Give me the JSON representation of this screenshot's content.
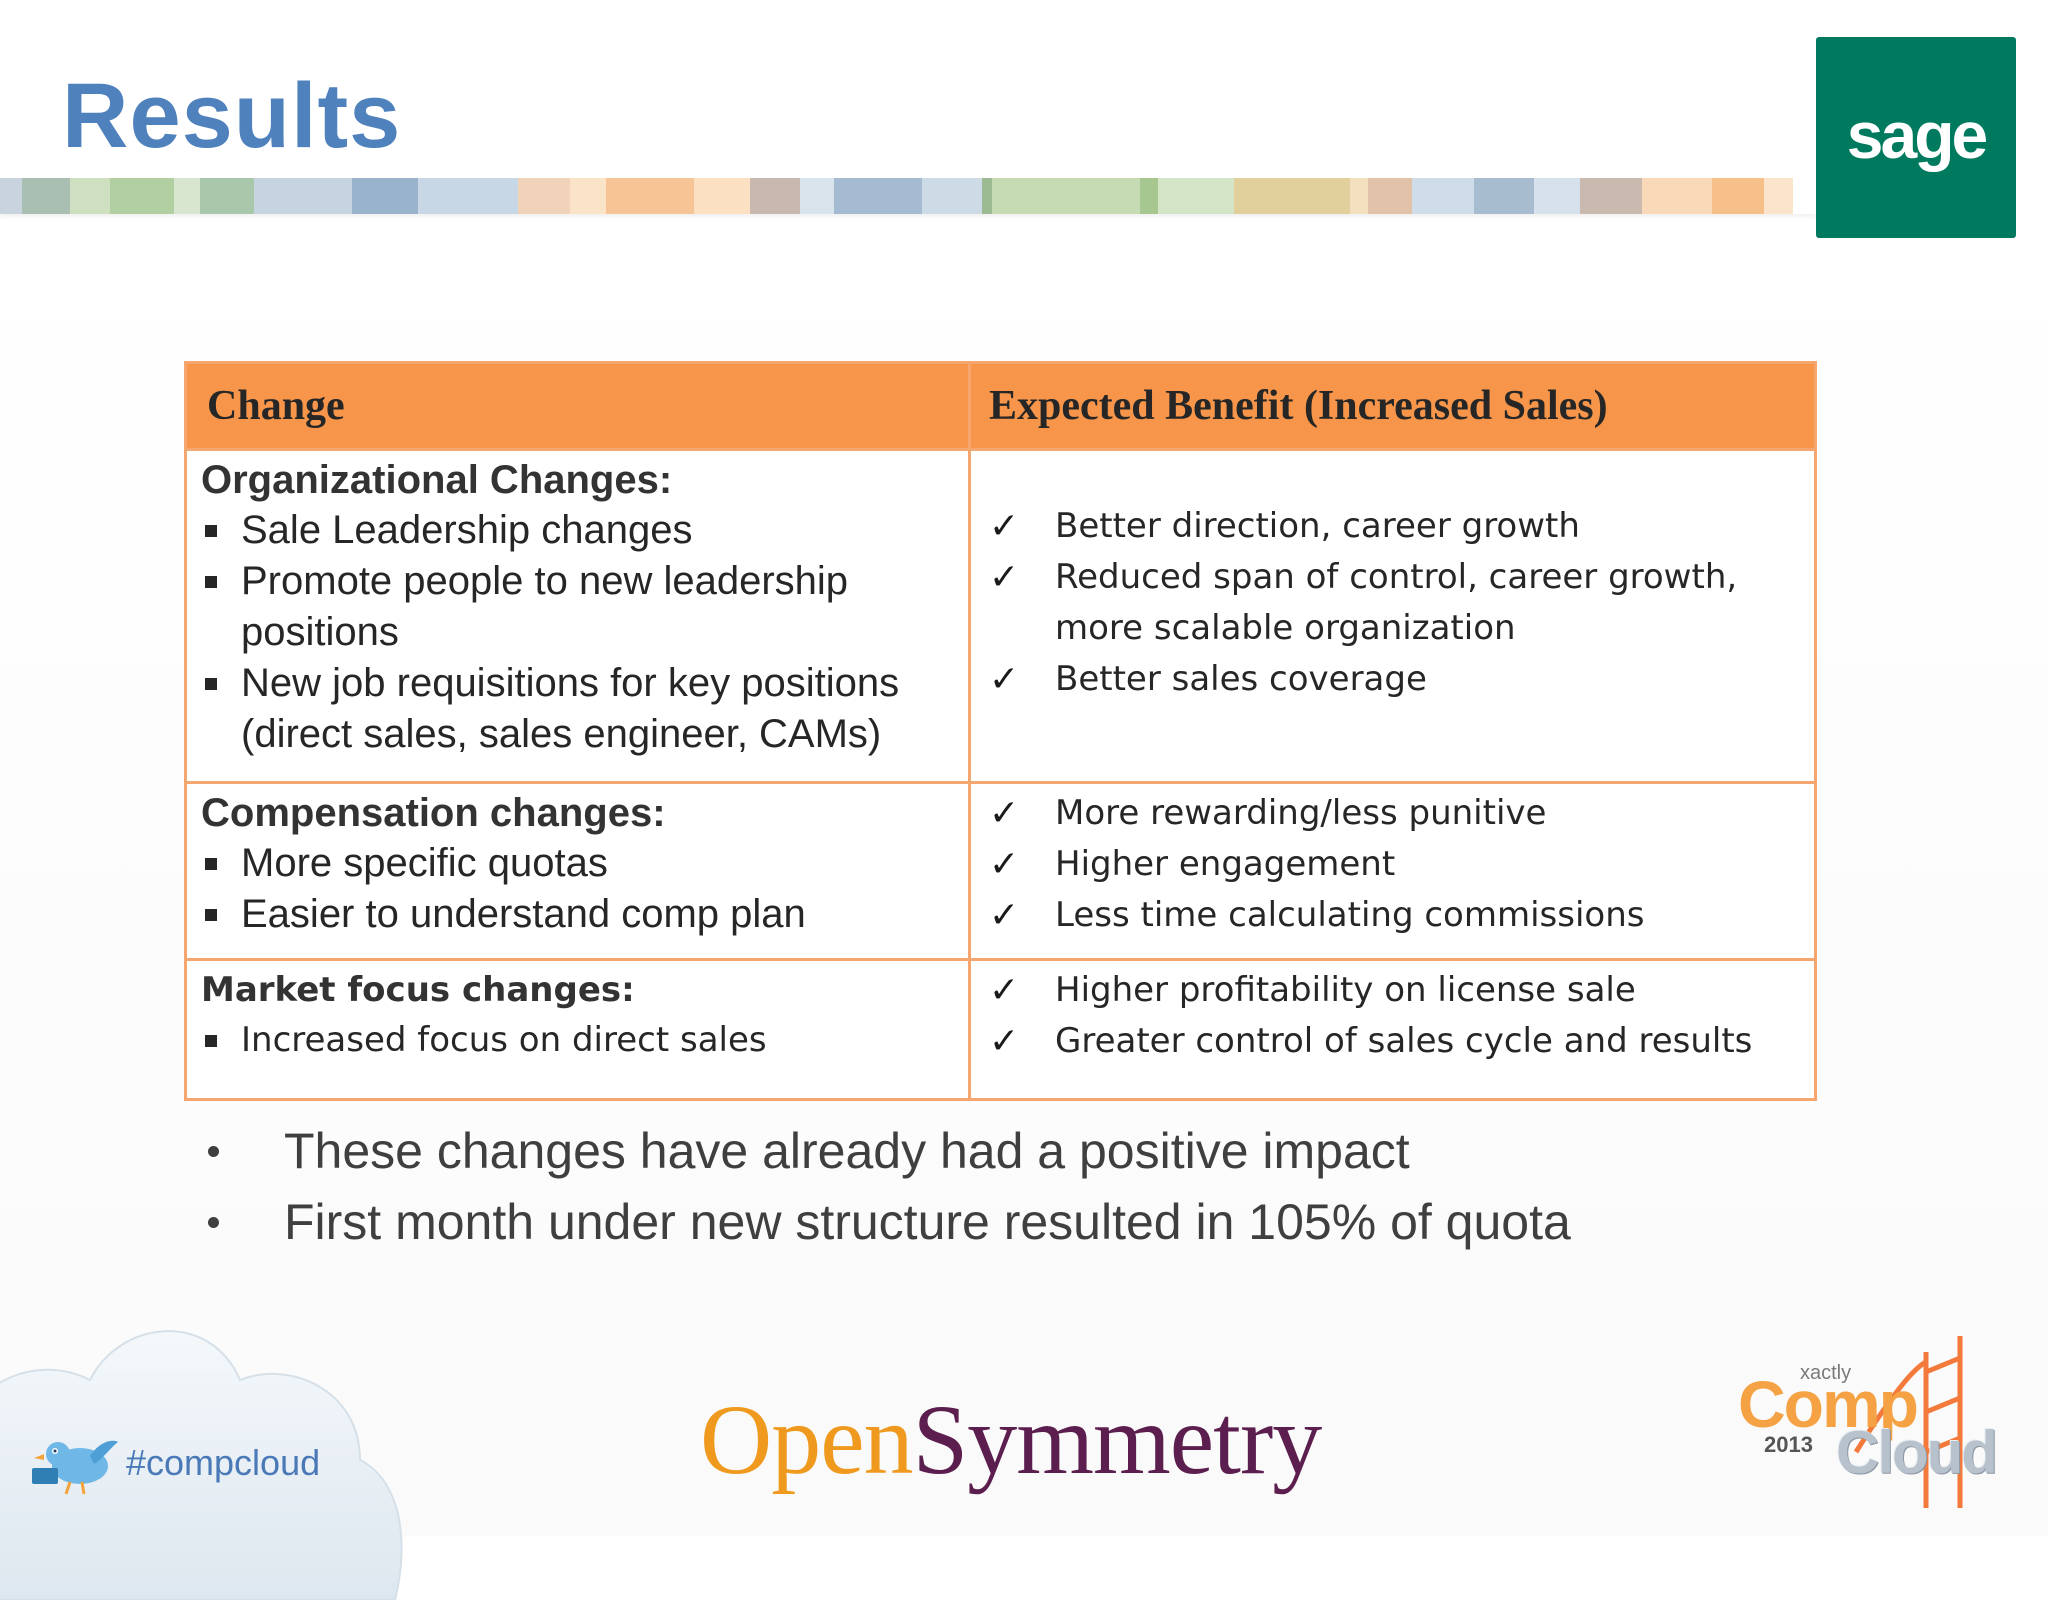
{
  "slide": {
    "title": "Results"
  },
  "logos": {
    "sage": "sage",
    "opensymmetry_open": "Open",
    "opensymmetry_symmetry": "Symmetry",
    "hashtag": "#compcloud",
    "compcloud_brand": "xactly",
    "compcloud_comp": "Comp",
    "compcloud_year": "2013",
    "compcloud_cloud": "Cloud"
  },
  "table": {
    "headers": [
      "Change",
      "Expected Benefit (Increased Sales)"
    ],
    "rows": [
      {
        "category": "Organizational Changes:",
        "changes": [
          "Sale Leadership  changes",
          "Promote  people  to new  leadership positions",
          "New job  requisitions  for key positions (direct sales, sales engineer,  CAMs)"
        ],
        "benefits": [
          "Better direction,  career growth",
          "Reduced span of control, career growth, more scalable organization",
          "Better sales  coverage"
        ]
      },
      {
        "category": "Compensation  changes:",
        "changes": [
          "More specific quotas",
          "Easier to understand  comp plan"
        ],
        "benefits": [
          "More rewarding/less punitive",
          "Higher engagement",
          "Less time calculating  commissions"
        ]
      },
      {
        "category": "Market focus changes:",
        "changes": [
          "Increased focus on direct  sales"
        ],
        "benefits": [
          "Higher profitability on license  sale",
          "Greater  control of sales cycle and results"
        ]
      }
    ]
  },
  "bullets": [
    "These changes have already had a positive impact",
    "First month under new structure resulted in 105% of quota"
  ],
  "colors": {
    "title_blue": "#4f81bd",
    "header_orange": "#f7964a",
    "border_orange": "#f4a66e",
    "sage_green": "#007a5e"
  }
}
